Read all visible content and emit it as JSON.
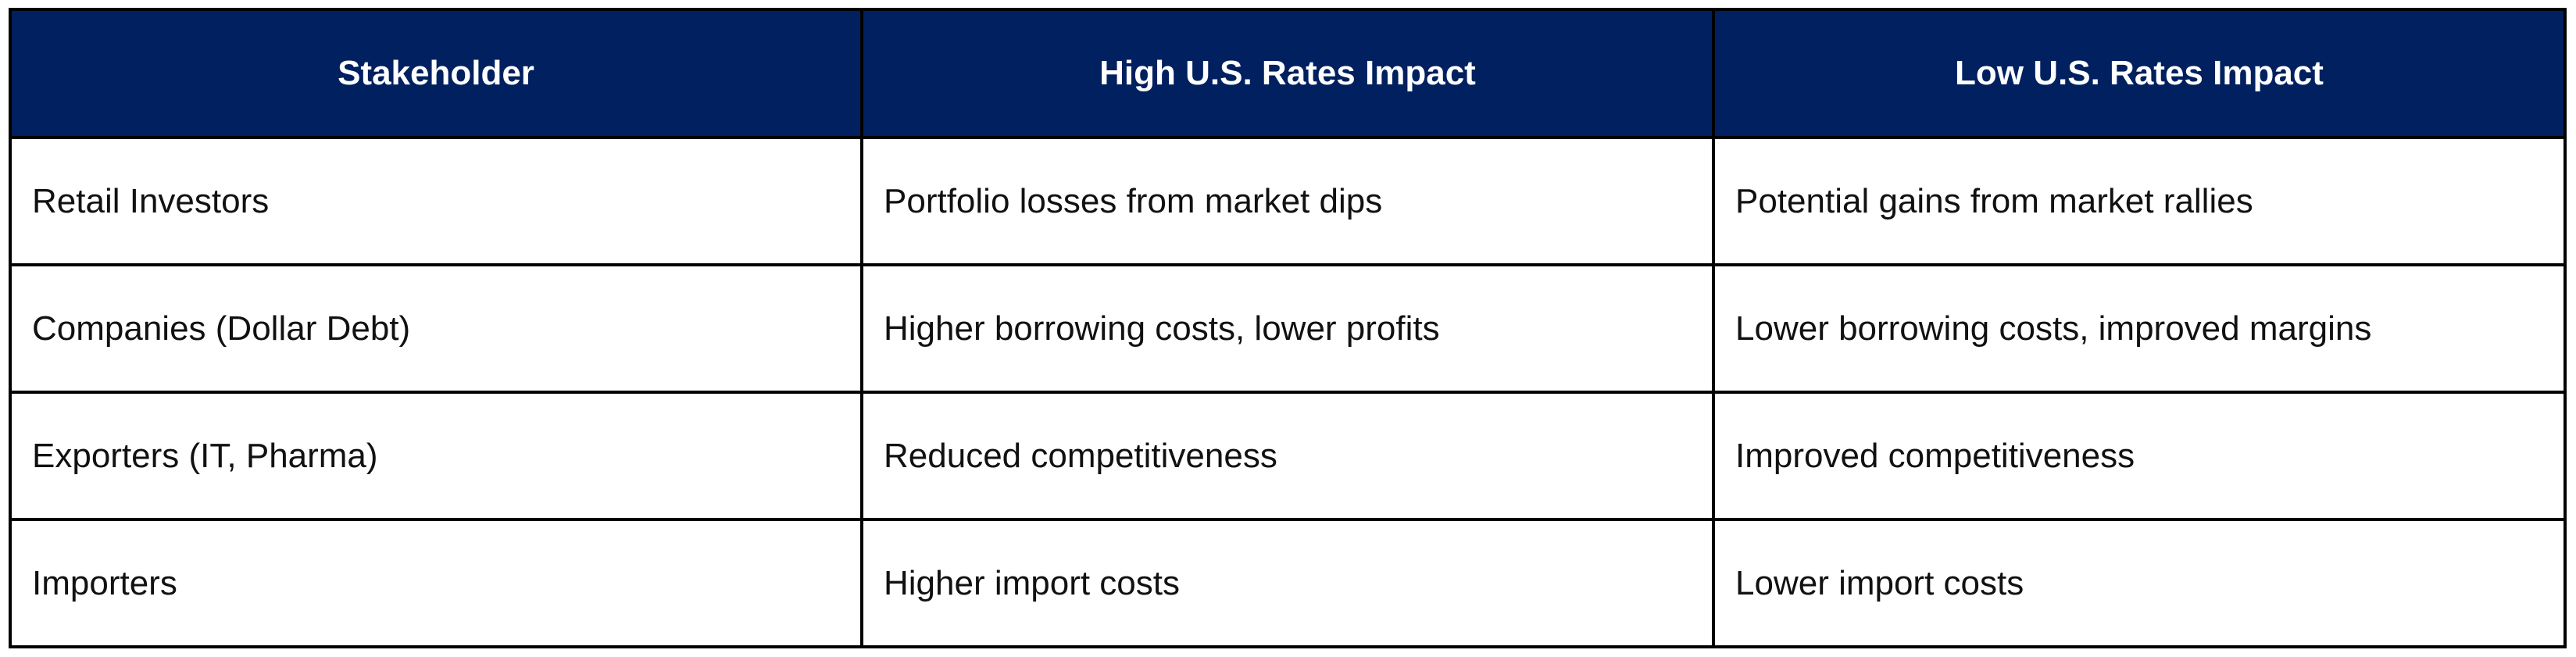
{
  "table": {
    "columns": [
      "Stakeholder",
      "High U.S. Rates Impact",
      "Low U.S. Rates Impact"
    ],
    "rows": [
      [
        "Retail Investors",
        "Portfolio losses from market dips",
        "Potential gains from market rallies"
      ],
      [
        "Companies (Dollar Debt)",
        "Higher borrowing costs, lower profits",
        "Lower borrowing costs, improved margins"
      ],
      [
        "Exporters (IT, Pharma)",
        "Reduced competitiveness",
        "Improved competitiveness"
      ],
      [
        "Importers",
        "Higher import costs",
        "Lower import costs"
      ]
    ],
    "colors": {
      "header_bg": "#00205f",
      "header_text": "#ffffff",
      "border": "#000000",
      "body_text": "#111111"
    }
  }
}
